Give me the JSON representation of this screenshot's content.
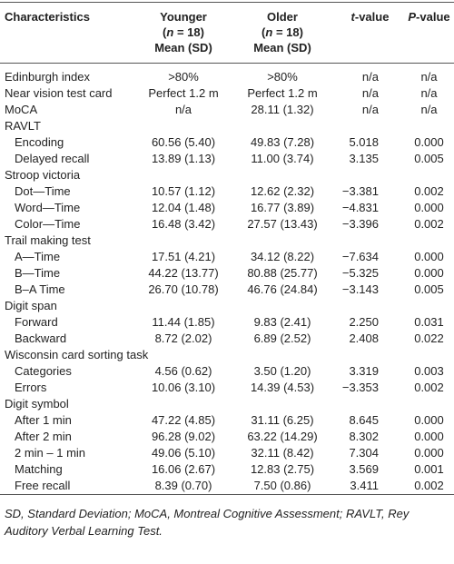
{
  "table": {
    "header": [
      {
        "lines": [
          [
            {
              "text": "Characteristics"
            }
          ]
        ]
      },
      {
        "lines": [
          [
            {
              "text": "Younger"
            }
          ],
          [
            {
              "text": "("
            },
            {
              "text": "n",
              "italic": true
            },
            {
              "text": " = 18)"
            }
          ],
          [
            {
              "text": "Mean (SD)"
            }
          ]
        ]
      },
      {
        "lines": [
          [
            {
              "text": "Older"
            }
          ],
          [
            {
              "text": "("
            },
            {
              "text": "n",
              "italic": true
            },
            {
              "text": " = 18)"
            }
          ],
          [
            {
              "text": "Mean (SD)"
            }
          ]
        ]
      },
      {
        "lines": [
          [
            {
              "text": "t",
              "italic": true
            },
            {
              "text": "-value"
            }
          ]
        ]
      },
      {
        "lines": [
          [
            {
              "text": "P",
              "italic": true
            },
            {
              "text": "-value"
            }
          ]
        ]
      }
    ],
    "rows": [
      {
        "label": "Edinburgh index",
        "cells": [
          ">80%",
          ">80%",
          "n/a",
          "n/a"
        ]
      },
      {
        "label": "Near vision test card",
        "cells": [
          "Perfect 1.2 m",
          "Perfect 1.2 m",
          "n/a",
          "n/a"
        ]
      },
      {
        "label": "MoCA",
        "cells": [
          "n/a",
          "28.11 (1.32)",
          "n/a",
          "n/a"
        ]
      },
      {
        "label": "RAVLT",
        "items": [
          {
            "label": "Encoding",
            "cells": [
              "60.56 (5.40)",
              "49.83 (7.28)",
              "5.018",
              "0.000"
            ]
          },
          {
            "label": "Delayed recall",
            "cells": [
              "13.89 (1.13)",
              "11.00 (3.74)",
              "3.135",
              "0.005"
            ]
          }
        ]
      },
      {
        "label": "Stroop victoria",
        "items": [
          {
            "label": "Dot—Time",
            "cells": [
              "10.57 (1.12)",
              "12.62 (2.32)",
              "−3.381",
              "0.002"
            ]
          },
          {
            "label": "Word—Time",
            "cells": [
              "12.04 (1.48)",
              "16.77 (3.89)",
              "−4.831",
              "0.000"
            ]
          },
          {
            "label": "Color—Time",
            "cells": [
              "16.48 (3.42)",
              "27.57 (13.43)",
              "−3.396",
              "0.002"
            ]
          }
        ]
      },
      {
        "label": "Trail making test",
        "items": [
          {
            "label": "A—Time",
            "cells": [
              "17.51 (4.21)",
              "34.12 (8.22)",
              "−7.634",
              "0.000"
            ]
          },
          {
            "label": "B—Time",
            "cells": [
              "44.22 (13.77)",
              "80.88 (25.77)",
              "−5.325",
              "0.000"
            ]
          },
          {
            "label": "B–A Time",
            "cells": [
              "26.70 (10.78)",
              "46.76 (24.84)",
              "−3.143",
              "0.005"
            ]
          }
        ]
      },
      {
        "label": "Digit span",
        "items": [
          {
            "label": "Forward",
            "cells": [
              "11.44 (1.85)",
              "9.83 (2.41)",
              "2.250",
              "0.031"
            ]
          },
          {
            "label": "Backward",
            "cells": [
              "8.72 (2.02)",
              "6.89 (2.52)",
              "2.408",
              "0.022"
            ]
          }
        ]
      },
      {
        "label": "Wisconsin card sorting task",
        "items": [
          {
            "label": "Categories",
            "cells": [
              "4.56 (0.62)",
              "3.50 (1.20)",
              "3.319",
              "0.003"
            ]
          },
          {
            "label": "Errors",
            "cells": [
              "10.06 (3.10)",
              "14.39 (4.53)",
              "−3.353",
              "0.002"
            ]
          }
        ]
      },
      {
        "label": "Digit symbol",
        "items": [
          {
            "label": "After 1 min",
            "cells": [
              "47.22 (4.85)",
              "31.11 (6.25)",
              "8.645",
              "0.000"
            ]
          },
          {
            "label": "After 2 min",
            "cells": [
              "96.28 (9.02)",
              "63.22 (14.29)",
              "8.302",
              "0.000"
            ]
          },
          {
            "label": "2 min – 1 min",
            "cells": [
              "49.06 (5.10)",
              "32.11 (8.42)",
              "7.304",
              "0.000"
            ]
          },
          {
            "label": "Matching",
            "cells": [
              "16.06 (2.67)",
              "12.83 (2.75)",
              "3.569",
              "0.001"
            ]
          },
          {
            "label": "Free recall",
            "cells": [
              "8.39 (0.70)",
              "7.50 (0.86)",
              "3.411",
              "0.002"
            ]
          }
        ]
      }
    ],
    "footnote": "SD, Standard Deviation; MoCA, Montreal Cognitive Assessment; RAVLT, Rey Auditory Verbal Learning Test."
  }
}
